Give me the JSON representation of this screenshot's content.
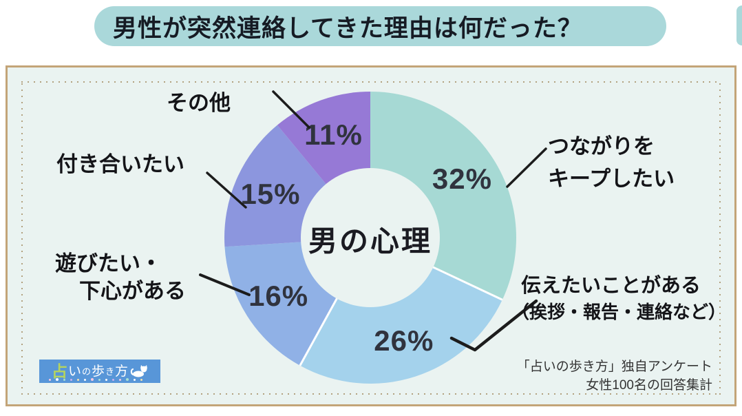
{
  "title": {
    "text": "男性が突然連絡してきた理由は何だった？"
  },
  "chart_data": {
    "type": "pie",
    "subtype": "donut",
    "center_label": "男の心理",
    "unit": "%",
    "direction": "clockwise",
    "start_angle_deg": 0,
    "segments": [
      {
        "label": "つながりをキープしたい",
        "label_lines": [
          "つながりを",
          "キープしたい"
        ],
        "value": 32,
        "pct_label": "32%",
        "color": "#a6d9d4"
      },
      {
        "label": "伝えたいことがある（挨拶・報告・連絡など）",
        "label_lines": [
          "伝えたいことがある",
          "（挨拶・報告・連絡など）"
        ],
        "value": 26,
        "pct_label": "26%",
        "color": "#a4d2ec"
      },
      {
        "label": "遊びたい・下心がある",
        "label_lines": [
          "遊びたい・",
          "下心がある"
        ],
        "value": 16,
        "pct_label": "16%",
        "color": "#90b1e6"
      },
      {
        "label": "付き合いたい",
        "label_lines": [
          "付き合いたい"
        ],
        "value": 15,
        "pct_label": "15%",
        "color": "#8c96de"
      },
      {
        "label": "その他",
        "label_lines": [
          "その他"
        ],
        "value": 11,
        "pct_label": "11%",
        "color": "#9679d6"
      }
    ],
    "separator_after_indices": [
      0,
      1
    ],
    "legend_position": "around-chart",
    "grid": false
  },
  "footer": {
    "source_line1": "「占いの歩き方」独自アンケート",
    "source_line2": "女性100名の回答集計"
  },
  "logo": {
    "text": "占いの歩き方",
    "chars": [
      "占",
      "い",
      "の",
      "歩",
      "き",
      "方"
    ]
  },
  "colors": {
    "banner": "#aad8da",
    "panel_background": "#eaf3f1",
    "panel_border": "#c3a478",
    "dotted_border": "#b2a17f",
    "callout_line": "#1c1c1c",
    "percent_text": "#30333e",
    "logo_background": "#5896d8",
    "logo_accent": "#b5d45f"
  }
}
